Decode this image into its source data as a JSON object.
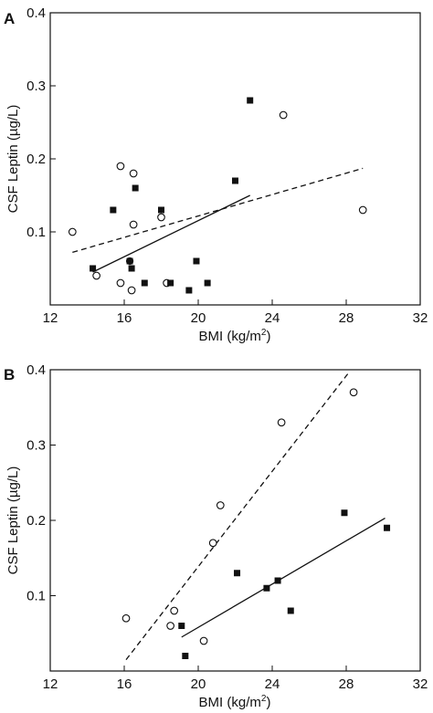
{
  "chart_data": [
    {
      "type": "scatter",
      "panel_label": "A",
      "xlabel_main": "BMI (kg/m",
      "xlabel_sup": "2",
      "xlabel_close": ")",
      "ylabel": "CSF Leptin (µg/L)",
      "xlim": [
        12,
        32
      ],
      "ylim": [
        0,
        0.4
      ],
      "x_ticks": [
        "12",
        "16",
        "20",
        "24",
        "28",
        "32"
      ],
      "y_ticks": [
        "0.1",
        "0.2",
        "0.3",
        "0.4"
      ],
      "x_tick_values": [
        12,
        16,
        20,
        24,
        28,
        32
      ],
      "y_tick_values": [
        0.1,
        0.2,
        0.3,
        0.4
      ],
      "series": [
        {
          "marker": "open-circle",
          "points": [
            [
              13.2,
              0.1
            ],
            [
              14.5,
              0.04
            ],
            [
              15.8,
              0.19
            ],
            [
              16.5,
              0.18
            ],
            [
              16.5,
              0.11
            ],
            [
              15.8,
              0.03
            ],
            [
              16.4,
              0.02
            ],
            [
              18.0,
              0.12
            ],
            [
              18.3,
              0.03
            ],
            [
              24.6,
              0.26
            ],
            [
              28.9,
              0.13
            ]
          ]
        },
        {
          "marker": "filled-square",
          "points": [
            [
              14.3,
              0.05
            ],
            [
              15.4,
              0.13
            ],
            [
              16.3,
              0.06
            ],
            [
              16.4,
              0.05
            ],
            [
              16.6,
              0.16
            ],
            [
              17.1,
              0.03
            ],
            [
              18.0,
              0.13
            ],
            [
              18.5,
              0.03
            ],
            [
              19.5,
              0.02
            ],
            [
              19.9,
              0.06
            ],
            [
              20.5,
              0.03
            ],
            [
              22.0,
              0.17
            ],
            [
              22.8,
              0.28
            ]
          ]
        },
        {
          "marker": "filled-circle",
          "points": [
            [
              16.3,
              0.06
            ]
          ]
        }
      ],
      "regression_lines": [
        {
          "style": "dashed",
          "x": [
            13.2,
            28.9
          ],
          "y": [
            0.072,
            0.187
          ]
        },
        {
          "style": "solid",
          "x": [
            14.3,
            22.8
          ],
          "y": [
            0.045,
            0.15
          ]
        }
      ]
    },
    {
      "type": "scatter",
      "panel_label": "B",
      "xlabel_main": "BMI (kg/m",
      "xlabel_sup": "2",
      "xlabel_close": ")",
      "ylabel": "CSF Leptin (µg/L)",
      "xlim": [
        12,
        32
      ],
      "ylim": [
        0,
        0.4
      ],
      "x_ticks": [
        "12",
        "16",
        "20",
        "24",
        "28",
        "32"
      ],
      "y_ticks": [
        "0.1",
        "0.2",
        "0.3",
        "0.4"
      ],
      "x_tick_values": [
        12,
        16,
        20,
        24,
        28,
        32
      ],
      "y_tick_values": [
        0.1,
        0.2,
        0.3,
        0.4
      ],
      "series": [
        {
          "marker": "open-circle",
          "points": [
            [
              16.1,
              0.07
            ],
            [
              18.5,
              0.06
            ],
            [
              18.7,
              0.08
            ],
            [
              20.3,
              0.04
            ],
            [
              20.8,
              0.17
            ],
            [
              21.2,
              0.22
            ],
            [
              24.5,
              0.33
            ],
            [
              28.4,
              0.37
            ]
          ]
        },
        {
          "marker": "filled-square",
          "points": [
            [
              19.1,
              0.06
            ],
            [
              19.3,
              0.02
            ],
            [
              22.1,
              0.13
            ],
            [
              23.7,
              0.11
            ],
            [
              24.3,
              0.12
            ],
            [
              25.0,
              0.08
            ],
            [
              27.9,
              0.21
            ],
            [
              30.2,
              0.19
            ]
          ]
        }
      ],
      "regression_lines": [
        {
          "style": "dashed",
          "x": [
            16.1,
            28.1
          ],
          "y": [
            0.015,
            0.395
          ]
        },
        {
          "style": "solid",
          "x": [
            19.1,
            30.1
          ],
          "y": [
            0.045,
            0.203
          ]
        }
      ]
    }
  ]
}
